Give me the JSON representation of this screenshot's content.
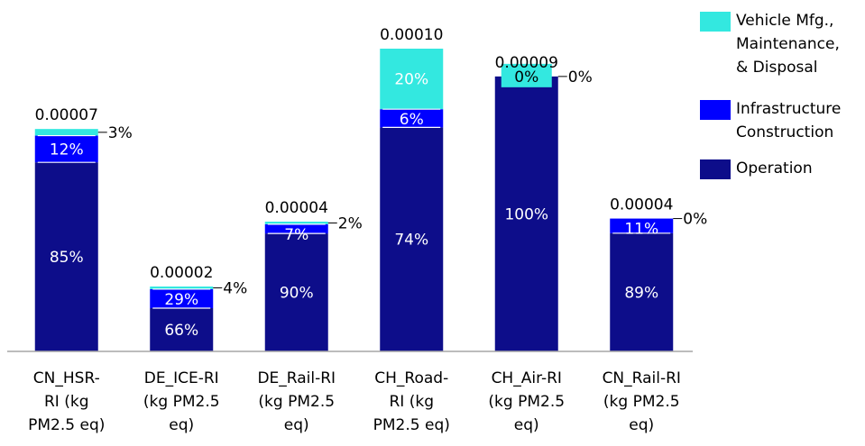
{
  "chart_data": {
    "type": "bar",
    "stacked": true,
    "categories": [
      "CN_HSR-RI (kg PM2.5 eq)",
      "DE_ICE-RI (kg PM2.5 eq)",
      "DE_Rail-RI (kg PM2.5 eq)",
      "CH_Road-RI (kg PM2.5 eq)",
      "CH_Air-RI (kg PM2.5 eq)",
      "CN_Rail-RI (kg PM2.5 eq)"
    ],
    "category_label_lines": [
      [
        "CN_HSR-",
        "RI (kg",
        "PM2.5 eq)"
      ],
      [
        "DE_ICE-RI",
        "(kg PM2.5",
        "eq)"
      ],
      [
        "DE_Rail-RI",
        "(kg PM2.5",
        "eq)"
      ],
      [
        "CH_Road-",
        "RI (kg",
        "PM2.5 eq)"
      ],
      [
        "CH_Air-RI",
        "(kg PM2.5",
        "eq)"
      ],
      [
        "CN_Rail-RI",
        "(kg PM2.5",
        "eq)"
      ]
    ],
    "totals": [
      7.2e-05,
      2.1e-05,
      4.2e-05,
      9.8e-05,
      8.9e-05,
      4.3e-05
    ],
    "total_labels": [
      "0.00007",
      "0.00002",
      "0.00004",
      "0.00010",
      "0.00009",
      "0.00004"
    ],
    "series": [
      {
        "name": "Operation",
        "color": "#0d0d8a",
        "shares": [
          85,
          66,
          90,
          74,
          100,
          89
        ],
        "labels": [
          "85%",
          "66%",
          "90%",
          "74%",
          "100%",
          "89%"
        ]
      },
      {
        "name": "Infrastructure Construction",
        "color": "#0000ff",
        "shares": [
          12,
          29,
          7,
          6,
          0,
          11
        ],
        "labels": [
          "12%",
          "29%",
          "7%",
          "6%",
          "",
          "11%"
        ]
      },
      {
        "name": "Vehicle Mfg., Maintenance, & Disposal",
        "color": "#33e8e0",
        "shares": [
          3,
          4,
          2,
          20,
          0,
          0
        ],
        "labels": [
          "3%",
          "4%",
          "2%",
          "20%",
          "0%",
          "0%"
        ]
      }
    ],
    "ylim": [
      0,
      0.000105
    ],
    "grid": false,
    "legend_position": "top-right"
  },
  "legend": {
    "items": [
      {
        "label": "Vehicle Mfg.,\nMaintenance,\n& Disposal",
        "color": "#33e8e0"
      },
      {
        "label": "Infrastructure\n Construction",
        "color": "#0000ff"
      },
      {
        "label": "Operation",
        "color": "#0d0d8a"
      }
    ]
  }
}
